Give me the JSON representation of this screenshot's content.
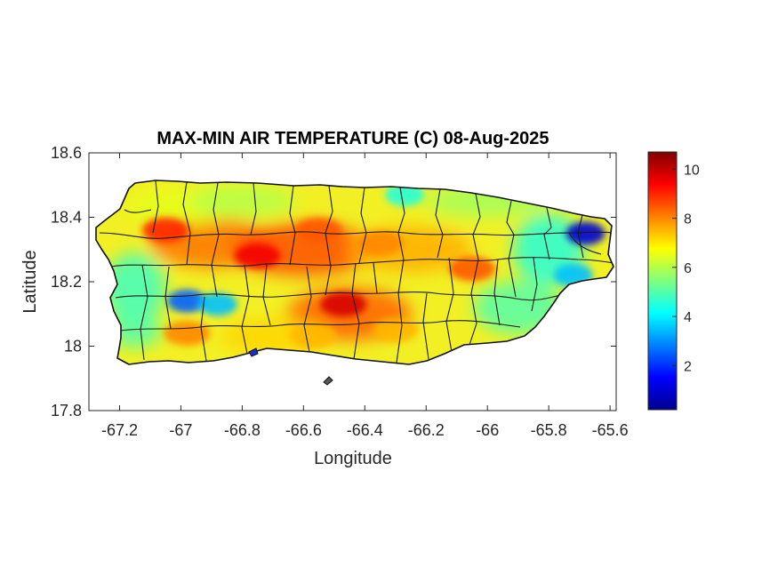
{
  "map": {
    "title": "MAX-MIN AIR TEMPERATURE (C) 08-Aug-2025",
    "x_axis": {
      "label": "Longitude",
      "range": [
        -67.3,
        -65.58
      ],
      "ticks": [
        -67.2,
        -67.0,
        -66.8,
        -66.6,
        -66.4,
        -66.2,
        -66.0,
        -65.8,
        -65.6
      ],
      "tick_labels": [
        "-67.2",
        "-67",
        "-66.8",
        "-66.6",
        "-66.4",
        "-66.2",
        "-66",
        "-65.8",
        "-65.6"
      ]
    },
    "y_axis": {
      "label": "Latitude",
      "range": [
        17.8,
        18.6
      ],
      "ticks": [
        17.8,
        18.0,
        18.2,
        18.4,
        18.6
      ],
      "tick_labels": [
        "17.8",
        "18",
        "18.2",
        "18.4",
        "18.6"
      ]
    },
    "colorbar": {
      "range": [
        0.2,
        10.7
      ],
      "ticks": [
        2,
        4,
        6,
        8,
        10
      ],
      "tick_labels": [
        "2",
        "4",
        "6",
        "8",
        "10"
      ],
      "colormap": "jet"
    },
    "region": "Puerto Rico municipalities",
    "hotspots": [
      {
        "lon": -67.05,
        "lat": 18.36,
        "value": 9.0
      },
      {
        "lon": -66.75,
        "lat": 18.28,
        "value": 9.5
      },
      {
        "lon": -66.55,
        "lat": 18.36,
        "value": 8.5
      },
      {
        "lon": -66.47,
        "lat": 18.13,
        "value": 9.8
      },
      {
        "lon": -66.35,
        "lat": 18.32,
        "value": 8.0
      },
      {
        "lon": -66.05,
        "lat": 18.24,
        "value": 8.5
      },
      {
        "lon": -66.98,
        "lat": 18.04,
        "value": 8.0
      },
      {
        "lon": -66.57,
        "lat": 18.03,
        "value": 7.5
      },
      {
        "lon": -66.3,
        "lat": 18.05,
        "value": 7.5
      }
    ],
    "coldspots": [
      {
        "lon": -66.98,
        "lat": 18.14,
        "value": 2.5
      },
      {
        "lon": -66.88,
        "lat": 18.13,
        "value": 3.5
      },
      {
        "lon": -65.68,
        "lat": 18.35,
        "value": 1.0
      },
      {
        "lon": -65.72,
        "lat": 18.22,
        "value": 3.5
      },
      {
        "lon": -66.27,
        "lat": 18.47,
        "value": 4.5
      }
    ]
  }
}
